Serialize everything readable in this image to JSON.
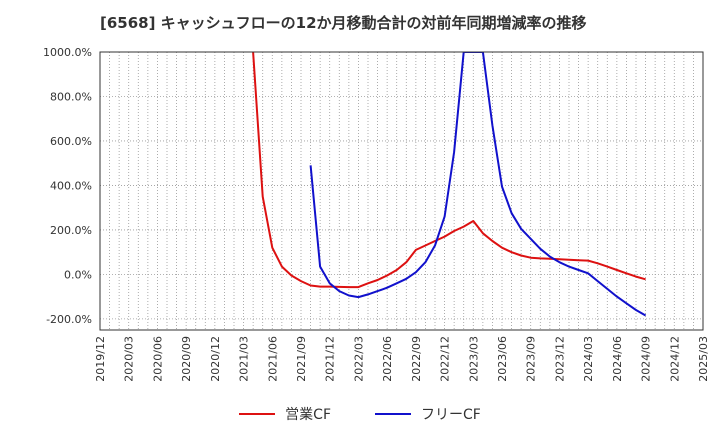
{
  "chart_data": {
    "type": "line",
    "title": "[6568]  キャッシュフローの12か月移動合計の対前年同期増減率の推移",
    "xlabel": "",
    "ylabel": "",
    "ylim": [
      -250,
      1000
    ],
    "y_ticks": [
      {
        "value": 1000,
        "label": "1000.0%"
      },
      {
        "value": 800,
        "label": "800.0%"
      },
      {
        "value": 600,
        "label": "600.0%"
      },
      {
        "value": 400,
        "label": "400.0%"
      },
      {
        "value": 200,
        "label": "200.0%"
      },
      {
        "value": 0,
        "label": "0.0%"
      },
      {
        "value": -200,
        "label": "-200.0%"
      }
    ],
    "x_start": "2019/12",
    "x_end": "2025/03",
    "x_ticks": [
      "2019/12",
      "2020/03",
      "2020/06",
      "2020/09",
      "2020/12",
      "2021/03",
      "2021/06",
      "2021/09",
      "2021/12",
      "2022/03",
      "2022/06",
      "2022/09",
      "2022/12",
      "2023/03",
      "2023/06",
      "2023/09",
      "2023/12",
      "2024/03",
      "2024/06",
      "2024/09",
      "2024/12",
      "2025/03"
    ],
    "series": [
      {
        "name": "営業CF",
        "color": "#dd1111",
        "points": [
          [
            "2021/04",
            1000
          ],
          [
            "2021/05",
            350
          ],
          [
            "2021/06",
            120
          ],
          [
            "2021/07",
            35
          ],
          [
            "2021/08",
            -5
          ],
          [
            "2021/09",
            -30
          ],
          [
            "2021/10",
            -50
          ],
          [
            "2021/11",
            -55
          ],
          [
            "2021/12",
            -55
          ],
          [
            "2022/01",
            -56
          ],
          [
            "2022/02",
            -57
          ],
          [
            "2022/03",
            -57
          ],
          [
            "2022/04",
            -40
          ],
          [
            "2022/05",
            -25
          ],
          [
            "2022/06",
            -5
          ],
          [
            "2022/07",
            20
          ],
          [
            "2022/08",
            55
          ],
          [
            "2022/09",
            110
          ],
          [
            "2022/10",
            130
          ],
          [
            "2022/11",
            150
          ],
          [
            "2022/12",
            170
          ],
          [
            "2023/01",
            195
          ],
          [
            "2023/02",
            215
          ],
          [
            "2023/03",
            240
          ],
          [
            "2023/04",
            185
          ],
          [
            "2023/05",
            150
          ],
          [
            "2023/06",
            120
          ],
          [
            "2023/07",
            100
          ],
          [
            "2023/08",
            85
          ],
          [
            "2023/09",
            75
          ],
          [
            "2023/10",
            72
          ],
          [
            "2023/11",
            70
          ],
          [
            "2023/12",
            68
          ],
          [
            "2024/01",
            66
          ],
          [
            "2024/02",
            64
          ],
          [
            "2024/03",
            62
          ],
          [
            "2024/04",
            50
          ],
          [
            "2024/05",
            35
          ],
          [
            "2024/06",
            20
          ],
          [
            "2024/07",
            5
          ],
          [
            "2024/08",
            -10
          ],
          [
            "2024/09",
            -22
          ]
        ]
      },
      {
        "name": "フリーCF",
        "color": "#1111cc",
        "points": [
          [
            "2021/10",
            490
          ],
          [
            "2021/11",
            35
          ],
          [
            "2021/12",
            -40
          ],
          [
            "2022/01",
            -75
          ],
          [
            "2022/02",
            -95
          ],
          [
            "2022/03",
            -102
          ],
          [
            "2022/04",
            -90
          ],
          [
            "2022/05",
            -75
          ],
          [
            "2022/06",
            -60
          ],
          [
            "2022/07",
            -40
          ],
          [
            "2022/08",
            -20
          ],
          [
            "2022/09",
            10
          ],
          [
            "2022/10",
            55
          ],
          [
            "2022/11",
            130
          ],
          [
            "2022/12",
            260
          ],
          [
            "2023/01",
            550
          ],
          [
            "2023/02",
            1000
          ],
          [
            "2023/04",
            1000
          ],
          [
            "2023/05",
            670
          ],
          [
            "2023/06",
            395
          ],
          [
            "2023/07",
            275
          ],
          [
            "2023/08",
            205
          ],
          [
            "2023/09",
            160
          ],
          [
            "2023/10",
            115
          ],
          [
            "2023/11",
            80
          ],
          [
            "2023/12",
            55
          ],
          [
            "2024/01",
            35
          ],
          [
            "2024/02",
            20
          ],
          [
            "2024/03",
            5
          ],
          [
            "2024/04",
            -30
          ],
          [
            "2024/05",
            -65
          ],
          [
            "2024/06",
            -100
          ],
          [
            "2024/07",
            -130
          ],
          [
            "2024/08",
            -160
          ],
          [
            "2024/09",
            -185
          ]
        ]
      }
    ],
    "legend_position": "bottom-center"
  }
}
